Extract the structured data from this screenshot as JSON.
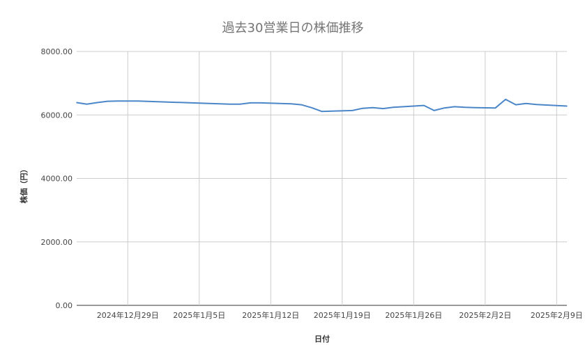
{
  "chart_data": {
    "type": "line",
    "title": "過去30営業日の株価推移",
    "xlabel": "日付",
    "ylabel": "株価（円）",
    "ylim": [
      0,
      8000
    ],
    "y_ticks": [
      "0.00",
      "2000.00",
      "4000.00",
      "6000.00",
      "8000.00"
    ],
    "y_tick_values": [
      0,
      2000,
      4000,
      6000,
      8000
    ],
    "x_tick_labels": [
      "2024年12月29日",
      "2025年1月5日",
      "2025年1月12日",
      "2025年1月19日",
      "2025年1月26日",
      "2025年2月2日",
      "2025年2月9日"
    ],
    "x_tick_dates": [
      "2024-12-29",
      "2025-01-05",
      "2025-01-12",
      "2025-01-19",
      "2025-01-26",
      "2025-02-02",
      "2025-02-09"
    ],
    "xlim": [
      "2024-12-24",
      "2025-02-10"
    ],
    "grid": true,
    "series_color": "#4a86c8",
    "series": [
      {
        "x": [
          "2024-12-24",
          "2024-12-25",
          "2024-12-26",
          "2024-12-27",
          "2024-12-28",
          "2024-12-30",
          "2025-01-06",
          "2025-01-08",
          "2025-01-09",
          "2025-01-10",
          "2025-01-11",
          "2025-01-14",
          "2025-01-15",
          "2025-01-16",
          "2025-01-17",
          "2025-01-18",
          "2025-01-20",
          "2025-01-21",
          "2025-01-22",
          "2025-01-23",
          "2025-01-24",
          "2025-01-25",
          "2025-01-27",
          "2025-01-28",
          "2025-01-29",
          "2025-01-30",
          "2025-01-31",
          "2025-02-01",
          "2025-02-03",
          "2025-02-04",
          "2025-02-05",
          "2025-02-06",
          "2025-02-07",
          "2025-02-10"
        ],
        "y": [
          6390,
          6340,
          6390,
          6430,
          6440,
          6440,
          6360,
          6340,
          6340,
          6380,
          6380,
          6350,
          6320,
          6230,
          6110,
          6120,
          6140,
          6210,
          6230,
          6200,
          6240,
          6260,
          6300,
          6140,
          6220,
          6260,
          6240,
          6230,
          6220,
          6490,
          6320,
          6360,
          6330,
          6280
        ]
      }
    ]
  }
}
